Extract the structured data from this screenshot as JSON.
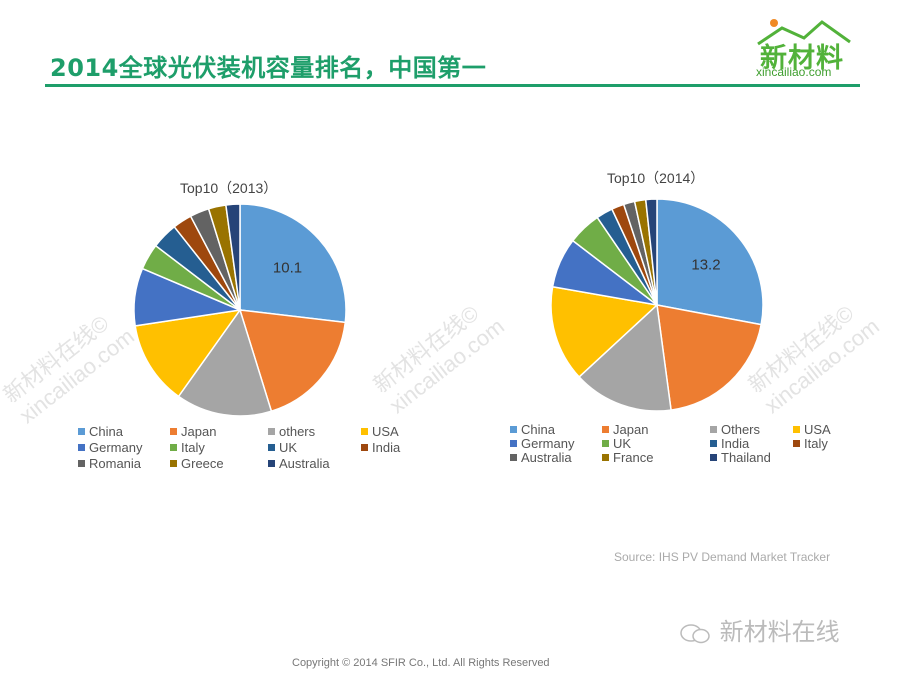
{
  "header": {
    "title": "2014全球光伏装机容量排名，中国第一",
    "logo_text": "新材料",
    "logo_url": "xincailiao.com",
    "accent_color": "#1e9e6a"
  },
  "watermark": {
    "line1": "新材料在线©",
    "line2": "xincailiao.com"
  },
  "chart_data": [
    {
      "type": "pie",
      "title": "Top10（2013）",
      "unit": "GW (estimated from slice angles)",
      "categories": [
        "China",
        "Japan",
        "others",
        "USA",
        "Germany",
        "Italy",
        "UK",
        "India",
        "Romania",
        "Greece",
        "Australia"
      ],
      "values": [
        10.1,
        6.9,
        5.5,
        4.8,
        3.3,
        1.5,
        1.5,
        1.1,
        1.1,
        1.0,
        0.8
      ],
      "colors": [
        "#5b9bd5",
        "#ed7d31",
        "#a5a5a5",
        "#ffc000",
        "#4472c4",
        "#70ad47",
        "#255e91",
        "#9e480e",
        "#636363",
        "#997300",
        "#264478"
      ],
      "data_labels": [
        {
          "category": "China",
          "label": "10.1"
        }
      ],
      "legend_position": "bottom"
    },
    {
      "type": "pie",
      "title": "Top10（2014）",
      "unit": "GW (estimated from slice angles)",
      "categories": [
        "China",
        "Japan",
        "Others",
        "USA",
        "Germany",
        "UK",
        "India",
        "Italy",
        "Australia",
        "France",
        "Thailand"
      ],
      "values": [
        13.2,
        9.4,
        7.2,
        6.9,
        3.6,
        2.4,
        1.2,
        0.9,
        0.8,
        0.8,
        0.8
      ],
      "colors": [
        "#5b9bd5",
        "#ed7d31",
        "#a5a5a5",
        "#ffc000",
        "#4472c4",
        "#70ad47",
        "#255e91",
        "#9e480e",
        "#636363",
        "#997300",
        "#264478"
      ],
      "data_labels": [
        {
          "category": "China",
          "label": "13.2"
        }
      ],
      "legend_position": "bottom"
    }
  ],
  "footer": {
    "source": "Source: IHS PV Demand Market Tracker",
    "wechat_name": "新材料在线",
    "copyright": "Copyright © 2014  SFIR Co., Ltd. All Rights Reserved"
  }
}
